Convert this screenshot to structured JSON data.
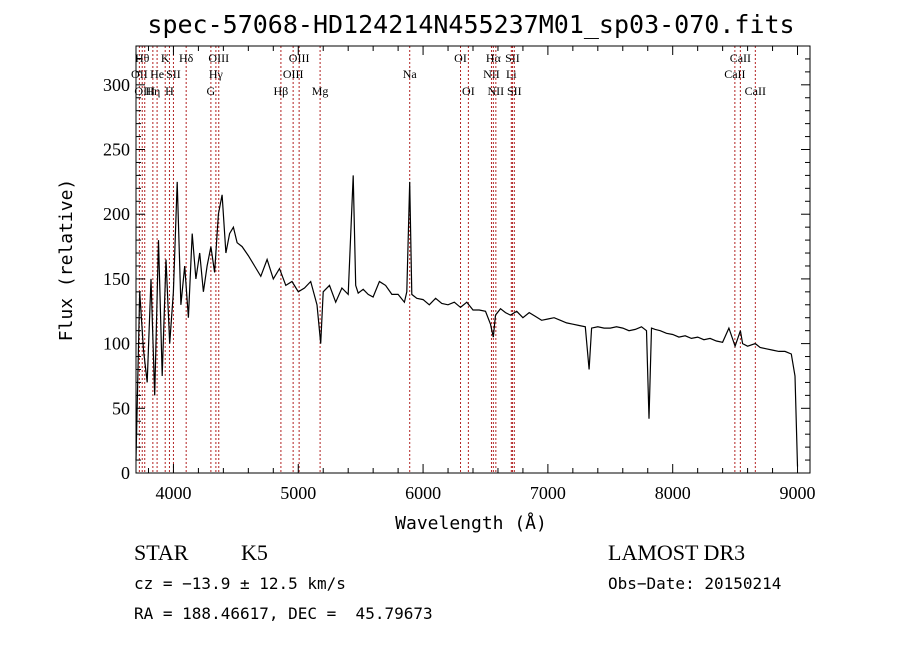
{
  "chart_data": {
    "type": "line",
    "title": "spec-57068-HD124214N455237M01_sp03-070.fits",
    "xlabel": "Wavelength (Å)",
    "ylabel": "Flux (relative)",
    "xlim": [
      3700,
      9100
    ],
    "ylim": [
      0,
      330
    ],
    "xticks": [
      4000,
      5000,
      6000,
      7000,
      8000,
      9000
    ],
    "yticks": [
      0,
      50,
      100,
      150,
      200,
      250,
      300
    ],
    "series": [
      {
        "x": [
          3700,
          3730,
          3760,
          3790,
          3820,
          3850,
          3880,
          3910,
          3940,
          3970,
          4000,
          4030,
          4060,
          4090,
          4120,
          4150,
          4180,
          4210,
          4240,
          4270,
          4300,
          4330,
          4360,
          4390,
          4420,
          4450,
          4480,
          4510,
          4550,
          4600,
          4650,
          4700,
          4750,
          4800,
          4850,
          4900,
          4950,
          5000,
          5050,
          5100,
          5150,
          5180,
          5200,
          5250,
          5300,
          5350,
          5400,
          5440,
          5460,
          5480,
          5520,
          5560,
          5600,
          5650,
          5700,
          5750,
          5800,
          5850,
          5870,
          5893,
          5910,
          5950,
          6000,
          6050,
          6100,
          6150,
          6200,
          6250,
          6300,
          6350,
          6400,
          6450,
          6500,
          6540,
          6563,
          6580,
          6620,
          6660,
          6700,
          6750,
          6800,
          6850,
          6900,
          6950,
          7000,
          7050,
          7100,
          7150,
          7200,
          7250,
          7300,
          7330,
          7350,
          7400,
          7450,
          7500,
          7550,
          7600,
          7650,
          7700,
          7750,
          7790,
          7810,
          7830,
          7860,
          7900,
          7950,
          8000,
          8050,
          8100,
          8150,
          8200,
          8250,
          8300,
          8350,
          8400,
          8450,
          8500,
          8542,
          8560,
          8600,
          8662,
          8700,
          8750,
          8800,
          8850,
          8900,
          8950,
          8980,
          9000
        ],
        "y": [
          10,
          140,
          95,
          70,
          150,
          60,
          180,
          75,
          165,
          100,
          140,
          225,
          130,
          160,
          120,
          185,
          150,
          170,
          140,
          160,
          175,
          155,
          200,
          215,
          170,
          185,
          190,
          178,
          175,
          168,
          160,
          152,
          165,
          150,
          158,
          145,
          148,
          140,
          143,
          148,
          130,
          100,
          140,
          145,
          132,
          143,
          138,
          230,
          145,
          139,
          142,
          138,
          136,
          148,
          145,
          138,
          138,
          132,
          140,
          225,
          138,
          135,
          134,
          130,
          135,
          131,
          130,
          132,
          128,
          132,
          126,
          126,
          125,
          115,
          105,
          122,
          127,
          124,
          122,
          125,
          120,
          124,
          121,
          118,
          119,
          120,
          118,
          116,
          115,
          114,
          113,
          80,
          112,
          113,
          112,
          112,
          113,
          112,
          110,
          111,
          113,
          110,
          42,
          112,
          111,
          110,
          108,
          107,
          105,
          106,
          104,
          105,
          103,
          104,
          102,
          101,
          112,
          98,
          110,
          100,
          98,
          100,
          97,
          96,
          95,
          94,
          94,
          92,
          75,
          5
        ]
      }
    ],
    "line_labels": [
      {
        "x": 3727,
        "label": "OII",
        "row": 2
      },
      {
        "x": 3750,
        "label": "Hθ",
        "row": 1
      },
      {
        "x": 3770,
        "label": "OIII",
        "row": 3
      },
      {
        "x": 3835,
        "label": "Hη",
        "row": 3
      },
      {
        "x": 3869,
        "label": "He",
        "row": 2
      },
      {
        "x": 3934,
        "label": "K",
        "row": 1
      },
      {
        "x": 3968,
        "label": "H",
        "row": 3
      },
      {
        "x": 4000,
        "label": "SII",
        "row": 2
      },
      {
        "x": 4102,
        "label": "Hδ",
        "row": 1
      },
      {
        "x": 4300,
        "label": "G",
        "row": 3
      },
      {
        "x": 4340,
        "label": "Hγ",
        "row": 2
      },
      {
        "x": 4363,
        "label": "OIII",
        "row": 1
      },
      {
        "x": 4861,
        "label": "Hβ",
        "row": 3
      },
      {
        "x": 4959,
        "label": "OIII",
        "row": 2
      },
      {
        "x": 5007,
        "label": "OIII",
        "row": 1
      },
      {
        "x": 5175,
        "label": "Mg",
        "row": 3
      },
      {
        "x": 5893,
        "label": "Na",
        "row": 2
      },
      {
        "x": 6300,
        "label": "OI",
        "row": 1
      },
      {
        "x": 6363,
        "label": "OI",
        "row": 3
      },
      {
        "x": 6548,
        "label": "NII",
        "row": 2
      },
      {
        "x": 6563,
        "label": "Hα",
        "row": 1
      },
      {
        "x": 6583,
        "label": "NII",
        "row": 3
      },
      {
        "x": 6707,
        "label": "Li",
        "row": 2
      },
      {
        "x": 6716,
        "label": "SII",
        "row": 1
      },
      {
        "x": 6731,
        "label": "SII",
        "row": 3
      },
      {
        "x": 8498,
        "label": "CaII",
        "row": 2
      },
      {
        "x": 8542,
        "label": "CaII",
        "row": 1
      },
      {
        "x": 8662,
        "label": "CaII",
        "row": 3
      }
    ],
    "grid": false,
    "legend": "none"
  },
  "info": {
    "class": "STAR",
    "subclass": "K5",
    "survey": "LAMOST DR3",
    "cz": "cz = −13.9 ± 12.5 km/s",
    "obs_date": "Obs−Date: 20150214",
    "coords": "RA = 188.46617, DEC =  45.79673"
  }
}
